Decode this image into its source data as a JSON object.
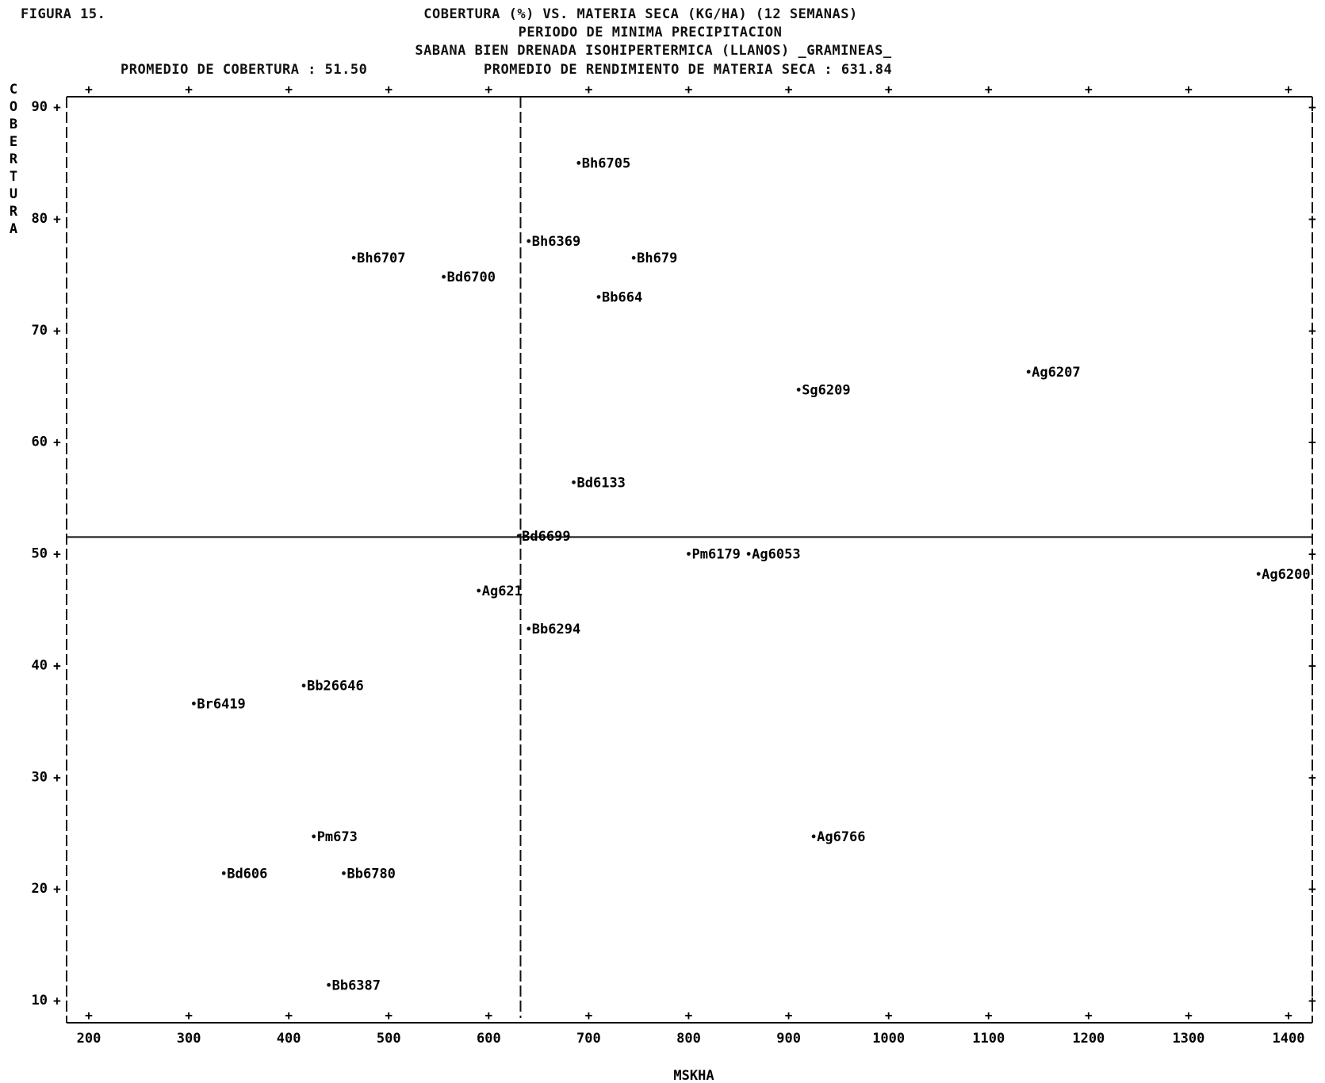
{
  "figure_label": "FIGURA 15.",
  "title_lines": [
    "COBERTURA (%) VS. MATERIA SECA (KG/HA) (12 SEMANAS)",
    "PERIODO DE MINIMA PRECIPITACION",
    "SABANA BIEN DRENADA ISOHIPERTERMICA (LLANOS) _GRAMINEAS_"
  ],
  "summary": {
    "cover_mean_text": "PROMEDIO DE COBERTURA : 51.50",
    "yield_mean_text": "PROMEDIO DE RENDIMIENTO DE MATERIA SECA : 631.84"
  },
  "chart_data": {
    "type": "scatter",
    "title": "COBERTURA (%) VS. MATERIA SECA (KG/HA) (12 SEMANAS)",
    "xlabel": "MSKHA",
    "ylabel": "COBERTURA",
    "xlim": [
      180,
      1420
    ],
    "ylim": [
      8,
      91
    ],
    "x_ticks": [
      200,
      300,
      400,
      500,
      600,
      700,
      800,
      900,
      1000,
      1100,
      1200,
      1300,
      1400
    ],
    "y_ticks": [
      10,
      20,
      30,
      40,
      50,
      60,
      70,
      80,
      90
    ],
    "reference_lines": {
      "x": 631.84,
      "y": 51.5
    },
    "points": [
      {
        "label": "Bh6705",
        "x": 690,
        "y": 85
      },
      {
        "label": "Bh6369",
        "x": 640,
        "y": 78
      },
      {
        "label": "Bh6707",
        "x": 465,
        "y": 76.5
      },
      {
        "label": "Bh679",
        "x": 745,
        "y": 76.5
      },
      {
        "label": "Bd6700",
        "x": 555,
        "y": 74.8
      },
      {
        "label": "Bb664",
        "x": 710,
        "y": 73
      },
      {
        "label": "Ag6207",
        "x": 1140,
        "y": 66.3
      },
      {
        "label": "Sg6209",
        "x": 910,
        "y": 64.7
      },
      {
        "label": "Bd6133",
        "x": 685,
        "y": 56.4
      },
      {
        "label": "Bd6699",
        "x": 630,
        "y": 51.6
      },
      {
        "label": "Pm6179",
        "x": 800,
        "y": 50
      },
      {
        "label": "Ag6053",
        "x": 860,
        "y": 50
      },
      {
        "label": "Ag6200",
        "x": 1370,
        "y": 48.2
      },
      {
        "label": "Ag621",
        "x": 590,
        "y": 46.7
      },
      {
        "label": "Bb6294",
        "x": 640,
        "y": 43.3
      },
      {
        "label": "Bb26646",
        "x": 415,
        "y": 38.2
      },
      {
        "label": "Br6419",
        "x": 305,
        "y": 36.6
      },
      {
        "label": "Pm673",
        "x": 425,
        "y": 24.7
      },
      {
        "label": "Ag6766",
        "x": 925,
        "y": 24.7
      },
      {
        "label": "Bd606",
        "x": 335,
        "y": 21.4
      },
      {
        "label": "Bb6780",
        "x": 455,
        "y": 21.4
      },
      {
        "label": "Bb6387",
        "x": 440,
        "y": 11.4
      }
    ]
  }
}
